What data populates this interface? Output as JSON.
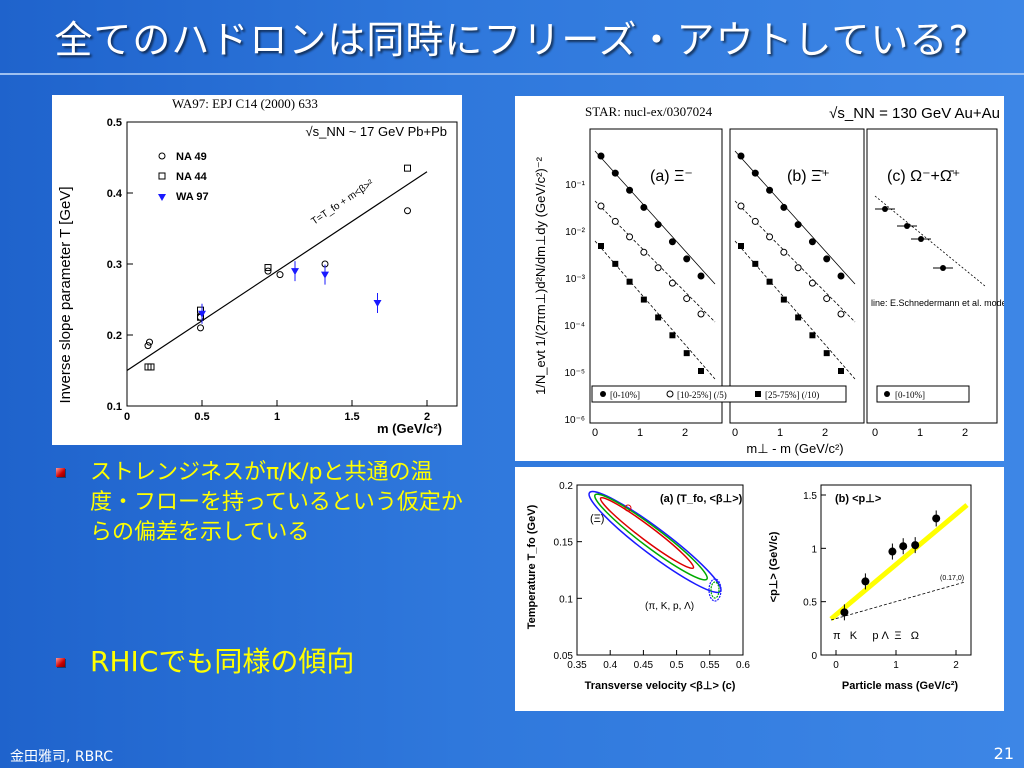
{
  "slide": {
    "title": "全てのハドロンは同時にフリーズ・アウトしている?",
    "page_number": "21",
    "author": "金田雅司, RBRC"
  },
  "bullets": [
    {
      "text": "ストレンジネスがπ/K/pと共通の温度・フローを持っているという仮定からの偏差を示している"
    },
    {
      "text": "RHICでも同様の傾向"
    }
  ],
  "figures": {
    "wa97": {
      "caption": "WA97: EPJ C14 (2000) 633",
      "energy": "√s_NN ~ 17 GeV Pb+Pb",
      "legend": [
        "NA 49",
        "NA 44",
        "WA 97"
      ],
      "relation": "T=T_fo + m<β>²"
    },
    "star": {
      "caption": "STAR: nucl-ex/0307024",
      "energy": "√s_NN = 130 GeV Au+Au",
      "panels": [
        "(a) Ξ⁻",
        "(b) Ξ̄⁺",
        "(c) Ω⁻+Ω̄⁺"
      ],
      "legend": [
        "[0-10%]",
        "[10-25%] (/5)",
        "[25-75%] (/10)"
      ],
      "legend_c": "[0-10%]",
      "note": "line: E.Schnedermann et al. model"
    },
    "tfo": {
      "title": "(a) (T_fo, <β⊥>)",
      "label_xi": "(Ξ)",
      "label_light": "(π, K, p, Λ)"
    },
    "pt": {
      "title": "(b) <p⊥>",
      "model": "(0.17,0)",
      "particles": "π   K     p Λ  Ξ   Ω"
    }
  },
  "chart_data": [
    {
      "type": "scatter",
      "title": "",
      "xlabel": "m (GeV/c²)",
      "ylabel": "Inverse slope parameter T [GeV]",
      "xlim": [
        0,
        2.2
      ],
      "ylim": [
        0.1,
        0.5
      ],
      "xticks": [
        0,
        0.5,
        1,
        1.5,
        2
      ],
      "yticks": [
        0.1,
        0.2,
        0.3,
        0.4,
        0.5
      ],
      "series": [
        {
          "name": "NA 49",
          "x": [
            0.14,
            0.15,
            0.49,
            0.49,
            0.94,
            1.02,
            1.32,
            1.87
          ],
          "y": [
            0.185,
            0.19,
            0.21,
            0.225,
            0.29,
            0.285,
            0.3,
            0.375
          ]
        },
        {
          "name": "NA 44",
          "x": [
            0.14,
            0.16,
            0.49,
            0.49,
            0.94,
            1.87
          ],
          "y": [
            0.155,
            0.155,
            0.235,
            0.225,
            0.295,
            0.435
          ]
        },
        {
          "name": "WA 97",
          "x": [
            0.5,
            1.12,
            1.32,
            1.67
          ],
          "y": [
            0.23,
            0.29,
            0.285,
            0.245
          ]
        }
      ],
      "fit_line": {
        "x": [
          0,
          2
        ],
        "y": [
          0.15,
          0.43
        ]
      }
    },
    {
      "type": "scatter",
      "title": "",
      "xlabel": "Transverse velocity <β⊥> (c)",
      "ylabel": "Temperature T_fo (GeV)",
      "xlim": [
        0.35,
        0.6
      ],
      "ylim": [
        0.05,
        0.2
      ],
      "xticks": [
        0.35,
        0.4,
        0.45,
        0.5,
        0.55,
        0.6
      ],
      "yticks": [
        0.05,
        0.1,
        0.15,
        0.2
      ]
    },
    {
      "type": "scatter",
      "title": "",
      "xlabel": "Particle mass (GeV/c²)",
      "ylabel": "<p⊥> (GeV/c)",
      "xlim": [
        0,
        2
      ],
      "ylim": [
        0,
        1.5
      ],
      "xticks": [
        0,
        1,
        2
      ],
      "yticks": [
        0,
        0.5,
        1,
        1.5
      ],
      "series": [
        {
          "name": "",
          "x": [
            0.14,
            0.49,
            0.94,
            1.12,
            1.32,
            1.67
          ],
          "y": [
            0.4,
            0.69,
            0.97,
            1.02,
            1.03,
            1.28
          ]
        }
      ]
    }
  ]
}
